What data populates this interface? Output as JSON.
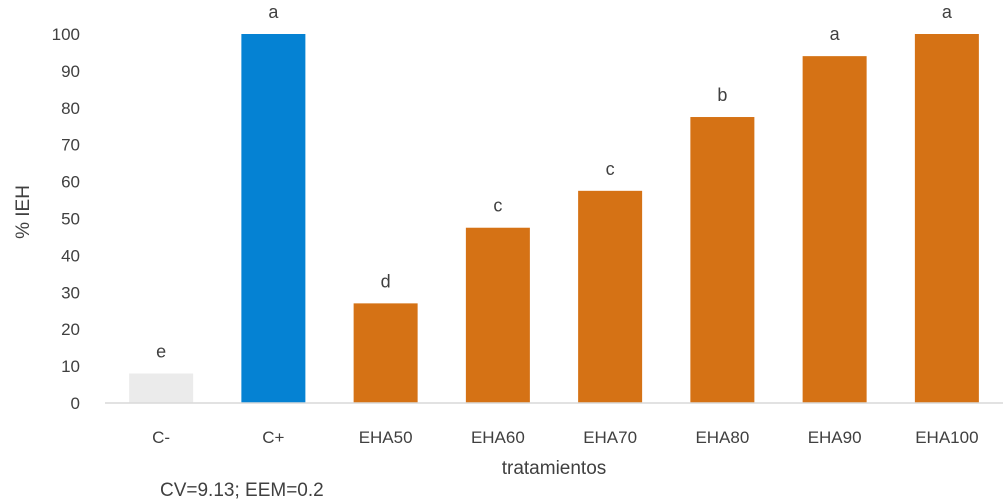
{
  "chart_data": {
    "type": "bar",
    "title": "",
    "xlabel": "tratamientos",
    "ylabel": "% IEH",
    "ylim": [
      0,
      100
    ],
    "yticks": [
      0,
      10,
      20,
      30,
      40,
      50,
      60,
      70,
      80,
      90,
      100
    ],
    "grid": false,
    "categories": [
      "C-",
      "C+",
      "EHA50",
      "EHA60",
      "EHA70",
      "EHA80",
      "EHA90",
      "EHA100"
    ],
    "values": [
      8,
      100,
      27,
      47.5,
      57.5,
      77.5,
      94,
      100
    ],
    "labels": [
      "e",
      "a",
      "d",
      "c",
      "c",
      "b",
      "a",
      "a"
    ],
    "colors": [
      "#ebebeb",
      "#0582d3",
      "#d57215",
      "#d57215",
      "#d57215",
      "#d57215",
      "#d57215",
      "#d57215"
    ],
    "note": "CV=9.13; EEM=0.2"
  }
}
